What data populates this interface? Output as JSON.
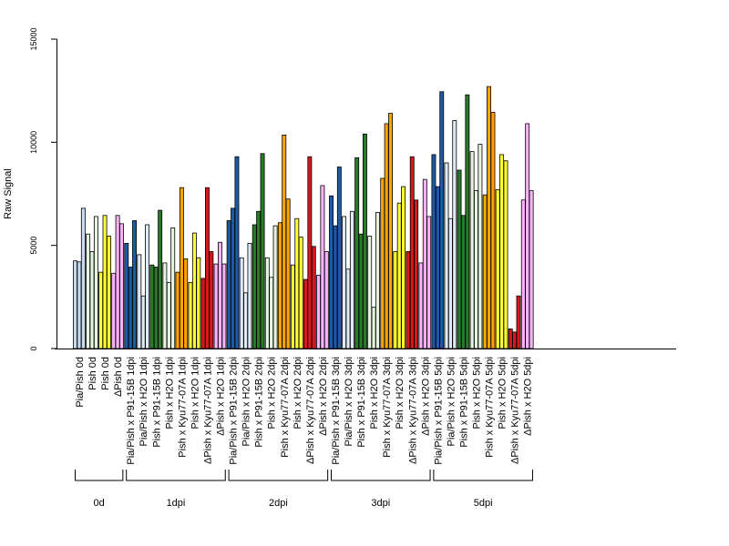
{
  "chart_data": {
    "type": "bar",
    "ylabel": "Raw Signal",
    "ylim": [
      0,
      15000
    ],
    "yticks": [
      0,
      5000,
      10000,
      15000
    ],
    "grid": false,
    "bars_per_category": 3,
    "colors": {
      "Pia/Pish": "#c6dbef",
      "Pish": "#ffff33",
      "ΔPish": "#ffb3ff",
      "Pia/Pish x P91-15B": "#1f5aa6",
      "Pia/Pish x H2O": "#deebf7",
      "Pish x P91-15B": "#2a7a2a",
      "Pish x H2O": "#e5f5e0",
      "Pish x Kyu77-07A": "#ffa500",
      "ΔPish x Kyu77-07A": "#d7191c",
      "ΔPish x H2O": "#ffb3ff"
    },
    "categories": [
      {
        "label": "Pia/Pish 0d",
        "color_key": "Pia/Pish",
        "values": [
          4250,
          4200,
          6800
        ]
      },
      {
        "label": "Pish 0d",
        "color_key": "Pish x H2O",
        "values": [
          5550,
          4700,
          6400
        ]
      },
      {
        "label": "Pish 0d",
        "color_key": "Pish",
        "values": [
          3700,
          6450,
          5450
        ]
      },
      {
        "label": "ΔPish 0d",
        "color_key": "ΔPish",
        "values": [
          3650,
          6450,
          6050
        ]
      },
      {
        "label": "Pia/Pish x P91-15B 1dpi",
        "color_key": "Pia/Pish x P91-15B",
        "values": [
          5100,
          3950,
          6200
        ]
      },
      {
        "label": "Pia/Pish x H2O 1dpi",
        "color_key": "Pia/Pish x H2O",
        "values": [
          4550,
          2550,
          6000
        ]
      },
      {
        "label": "Pish x P91-15B 1dpi",
        "color_key": "Pish x P91-15B",
        "values": [
          4050,
          3950,
          6700
        ]
      },
      {
        "label": "Pish x H2O 1dpi",
        "color_key": "Pish x H2O",
        "values": [
          4150,
          3200,
          5850
        ]
      },
      {
        "label": "Pish x Kyu77-07A 1dpi",
        "color_key": "Pish x Kyu77-07A",
        "values": [
          3700,
          7800,
          4350
        ]
      },
      {
        "label": "Pish x H2O 1dpi",
        "color_key": "Pish",
        "values": [
          3200,
          5600,
          4400
        ]
      },
      {
        "label": "ΔPish x Kyu77-07A 1dpi",
        "color_key": "ΔPish x Kyu77-07A",
        "values": [
          3400,
          7800,
          4700
        ]
      },
      {
        "label": "ΔPish x H2O 1dpi",
        "color_key": "ΔPish x H2O",
        "values": [
          4100,
          5150,
          4100
        ]
      },
      {
        "label": "Pia/Pish x P91-15B 2dpi",
        "color_key": "Pia/Pish x P91-15B",
        "values": [
          6200,
          6800,
          9300
        ]
      },
      {
        "label": "Pia/Pish x H2O 2dpi",
        "color_key": "Pia/Pish x H2O",
        "values": [
          4400,
          2700,
          5100
        ]
      },
      {
        "label": "Pish x P91-15B 2dpi",
        "color_key": "Pish x P91-15B",
        "values": [
          6000,
          6650,
          9450
        ]
      },
      {
        "label": "Pish x H2O 2dpi",
        "color_key": "Pish x H2O",
        "values": [
          4400,
          3450,
          5950
        ]
      },
      {
        "label": "Pish x Kyu77-07A 2dpi",
        "color_key": "Pish x Kyu77-07A",
        "values": [
          6100,
          10350,
          7250
        ]
      },
      {
        "label": "Pish x H2O 2dpi",
        "color_key": "Pish",
        "values": [
          4050,
          6300,
          5400
        ]
      },
      {
        "label": "ΔPish x Kyu77-07A 2dpi",
        "color_key": "ΔPish x Kyu77-07A",
        "values": [
          3350,
          9300,
          4950
        ]
      },
      {
        "label": "ΔPish x H2O 2dpi",
        "color_key": "ΔPish x H2O",
        "values": [
          3550,
          7900,
          4700
        ]
      },
      {
        "label": "Pia/Pish x P91-15B 3dpi",
        "color_key": "Pia/Pish x P91-15B",
        "values": [
          7400,
          5950,
          8800
        ]
      },
      {
        "label": "Pia/Pish x H2O 3dpi",
        "color_key": "Pia/Pish x H2O",
        "values": [
          6400,
          3850,
          6650
        ]
      },
      {
        "label": "Pish x P91-15B 3dpi",
        "color_key": "Pish x P91-15B",
        "values": [
          9250,
          5550,
          10400
        ]
      },
      {
        "label": "Pish x H2O 3dpi",
        "color_key": "Pish x H2O",
        "values": [
          5450,
          2000,
          6600
        ]
      },
      {
        "label": "Pish x Kyu77-07A 3dpi",
        "color_key": "Pish x Kyu77-07A",
        "values": [
          8250,
          10900,
          11400
        ]
      },
      {
        "label": "Pish x H2O 3dpi",
        "color_key": "Pish",
        "values": [
          4700,
          7050,
          7850
        ]
      },
      {
        "label": "ΔPish x Kyu77-07A 3dpi",
        "color_key": "ΔPish x Kyu77-07A",
        "values": [
          4700,
          9300,
          7200
        ]
      },
      {
        "label": "ΔPish x H2O 3dpi",
        "color_key": "ΔPish x H2O",
        "values": [
          4150,
          8200,
          6400
        ]
      },
      {
        "label": "Pia/Pish x P91-15B 5dpi",
        "color_key": "Pia/Pish x P91-15B",
        "values": [
          9400,
          7850,
          12450
        ]
      },
      {
        "label": "Pia/Pish x H2O 5dpi",
        "color_key": "Pia/Pish x H2O",
        "values": [
          9000,
          6300,
          11050
        ]
      },
      {
        "label": "Pish x P91-15B 5dpi",
        "color_key": "Pish x P91-15B",
        "values": [
          8650,
          6450,
          12300
        ]
      },
      {
        "label": "Pish x H2O 5dpi",
        "color_key": "Pish x H2O",
        "values": [
          9550,
          7650,
          9900
        ]
      },
      {
        "label": "Pish x Kyu77-07A 5dpi",
        "color_key": "Pish x Kyu77-07A",
        "values": [
          7450,
          12700,
          11450
        ]
      },
      {
        "label": "Pish x H2O 5dpi",
        "color_key": "Pish",
        "values": [
          7700,
          9400,
          9100
        ]
      },
      {
        "label": "ΔPish x Kyu77-07A 5dpi",
        "color_key": "ΔPish x Kyu77-07A",
        "values": [
          950,
          800,
          2550
        ]
      },
      {
        "label": "ΔPish x H2O 5dpi",
        "color_key": "ΔPish x H2O",
        "values": [
          7200,
          10900,
          7650
        ]
      }
    ],
    "groups": [
      {
        "label": "0d",
        "start": 0,
        "end": 3
      },
      {
        "label": "1dpi",
        "start": 4,
        "end": 11
      },
      {
        "label": "2dpi",
        "start": 12,
        "end": 19
      },
      {
        "label": "3dpi",
        "start": 20,
        "end": 27
      },
      {
        "label": "5dpi",
        "start": 28,
        "end": 35
      }
    ]
  }
}
